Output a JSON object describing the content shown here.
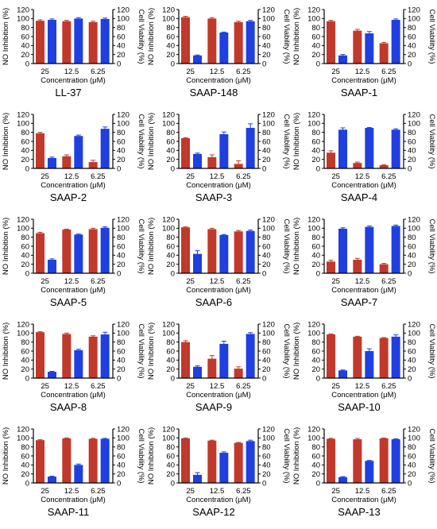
{
  "chart_data": [
    {
      "type": "bar",
      "title": "LL-37",
      "categories": [
        "25",
        "12.5",
        "6.25"
      ],
      "xlabel": "Concentration (μM)",
      "ylabel": "NO Inhibition (%)",
      "y2label": "Cell Viability (%)",
      "ylim": [
        0,
        120
      ],
      "y2lim": [
        0,
        120
      ],
      "yticks": [
        "0",
        "20",
        "40",
        "60",
        "80",
        "100",
        "120"
      ],
      "series": [
        {
          "axis": "left",
          "color": "#c0392b",
          "values": [
            95,
            94,
            92
          ],
          "errors": [
            2,
            2,
            2
          ]
        },
        {
          "axis": "right",
          "color": "#1f3fe0",
          "values": [
            97,
            100,
            99
          ],
          "errors": [
            2,
            2,
            2
          ]
        }
      ]
    },
    {
      "type": "bar",
      "title": "SAAP-148",
      "categories": [
        "25",
        "12.5",
        "6.25"
      ],
      "xlabel": "Concentration (μM)",
      "ylabel": "NO Inhibition (%)",
      "y2label": "Cell Viability (%)",
      "ylim": [
        0,
        120
      ],
      "y2lim": [
        0,
        120
      ],
      "yticks": [
        "0",
        "20",
        "40",
        "60",
        "80",
        "100",
        "120"
      ],
      "series": [
        {
          "axis": "left",
          "color": "#c0392b",
          "values": [
            103,
            100,
            92
          ],
          "errors": [
            2,
            2,
            2
          ]
        },
        {
          "axis": "right",
          "color": "#1f3fe0",
          "values": [
            18,
            69,
            94
          ],
          "errors": [
            1,
            1,
            2
          ]
        }
      ]
    },
    {
      "type": "bar",
      "title": "SAAP-1",
      "categories": [
        "25",
        "12.5",
        "6.25"
      ],
      "xlabel": "Concentration (μM)",
      "ylabel": "NO Inhibition (%)",
      "y2label": "Cell Viability (%)",
      "ylim": [
        0,
        120
      ],
      "y2lim": [
        0,
        120
      ],
      "yticks": [
        "0",
        "20",
        "40",
        "60",
        "80",
        "100",
        "120"
      ],
      "series": [
        {
          "axis": "left",
          "color": "#c0392b",
          "values": [
            94,
            73,
            45
          ],
          "errors": [
            2,
            3,
            2
          ]
        },
        {
          "axis": "right",
          "color": "#1f3fe0",
          "values": [
            18,
            67,
            97
          ],
          "errors": [
            2,
            4,
            2
          ]
        }
      ]
    },
    {
      "type": "bar",
      "title": "SAAP-2",
      "categories": [
        "25",
        "12.5",
        "6.25"
      ],
      "xlabel": "Concentration (μM)",
      "ylabel": "NO Inhibition (%)",
      "y2label": "Cell Viability (%)",
      "ylim": [
        0,
        120
      ],
      "y2lim": [
        0,
        120
      ],
      "yticks": [
        "0",
        "20",
        "40",
        "60",
        "80",
        "100",
        "120"
      ],
      "series": [
        {
          "axis": "left",
          "color": "#c0392b",
          "values": [
            78,
            27,
            14
          ],
          "errors": [
            2,
            3,
            4
          ]
        },
        {
          "axis": "right",
          "color": "#1f3fe0",
          "values": [
            23,
            72,
            88
          ],
          "errors": [
            2,
            2,
            4
          ]
        }
      ]
    },
    {
      "type": "bar",
      "title": "SAAP-3",
      "categories": [
        "25",
        "12.5",
        "6.25"
      ],
      "xlabel": "Concentration (μM)",
      "ylabel": "NO Inhibition (%)",
      "y2label": "Cell Viability (%)",
      "ylim": [
        0,
        120
      ],
      "y2lim": [
        0,
        120
      ],
      "yticks": [
        "0",
        "20",
        "40",
        "60",
        "80",
        "100",
        "120"
      ],
      "series": [
        {
          "axis": "left",
          "color": "#c0392b",
          "values": [
            67,
            25,
            10
          ],
          "errors": [
            1,
            5,
            7
          ]
        },
        {
          "axis": "right",
          "color": "#1f3fe0",
          "values": [
            32,
            76,
            90
          ],
          "errors": [
            2,
            5,
            9
          ]
        }
      ]
    },
    {
      "type": "bar",
      "title": "SAAP-4",
      "categories": [
        "25",
        "12.5",
        "6.25"
      ],
      "xlabel": "Concentration (μM)",
      "ylabel": "NO Inhibition (%)",
      "y2label": "Cell Viability (%)",
      "ylim": [
        0,
        120
      ],
      "y2lim": [
        0,
        120
      ],
      "yticks": [
        "0",
        "20",
        "40",
        "60",
        "80",
        "100",
        "120"
      ],
      "series": [
        {
          "axis": "left",
          "color": "#c0392b",
          "values": [
            35,
            12,
            7
          ],
          "errors": [
            4,
            2,
            1
          ]
        },
        {
          "axis": "right",
          "color": "#1f3fe0",
          "values": [
            86,
            90,
            86
          ],
          "errors": [
            4,
            1,
            2
          ]
        }
      ]
    },
    {
      "type": "bar",
      "title": "SAAP-5",
      "categories": [
        "25",
        "12.5",
        "6.25"
      ],
      "xlabel": "Concentration (μM)",
      "ylabel": "NO Inhibition (%)",
      "y2label": "Cell Viability (%)",
      "ylim": [
        0,
        120
      ],
      "y2lim": [
        0,
        120
      ],
      "yticks": [
        "0",
        "20",
        "40",
        "60",
        "80",
        "100",
        "120"
      ],
      "series": [
        {
          "axis": "left",
          "color": "#c0392b",
          "values": [
            89,
            97,
            98
          ],
          "errors": [
            2,
            1,
            2
          ]
        },
        {
          "axis": "right",
          "color": "#1f3fe0",
          "values": [
            30,
            86,
            101
          ],
          "errors": [
            2,
            1,
            2
          ]
        }
      ]
    },
    {
      "type": "bar",
      "title": "SAAP-6",
      "categories": [
        "25",
        "12.5",
        "6.25"
      ],
      "xlabel": "Concentration (μM)",
      "ylabel": "NO Inhibition (%)",
      "y2label": "Cell Viability (%)",
      "ylim": [
        0,
        120
      ],
      "y2lim": [
        0,
        120
      ],
      "yticks": [
        "0",
        "20",
        "40",
        "60",
        "80",
        "100",
        "120"
      ],
      "series": [
        {
          "axis": "left",
          "color": "#c0392b",
          "values": [
            102,
            98,
            93
          ],
          "errors": [
            1,
            2,
            2
          ]
        },
        {
          "axis": "right",
          "color": "#1f3fe0",
          "values": [
            43,
            85,
            94
          ],
          "errors": [
            7,
            1,
            2
          ]
        }
      ]
    },
    {
      "type": "bar",
      "title": "SAAP-7",
      "categories": [
        "25",
        "12.5",
        "6.25"
      ],
      "xlabel": "Concentration (μM)",
      "ylabel": "NO Inhibition (%)",
      "y2label": "Cell Viability (%)",
      "ylim": [
        0,
        120
      ],
      "y2lim": [
        0,
        120
      ],
      "yticks": [
        "0",
        "20",
        "40",
        "60",
        "80",
        "100",
        "120"
      ],
      "series": [
        {
          "axis": "left",
          "color": "#c0392b",
          "values": [
            26,
            30,
            20
          ],
          "errors": [
            3,
            3,
            2
          ]
        },
        {
          "axis": "right",
          "color": "#1f3fe0",
          "values": [
            99,
            103,
            105
          ],
          "errors": [
            2,
            2,
            2
          ]
        }
      ]
    },
    {
      "type": "bar",
      "title": "SAAP-8",
      "categories": [
        "25",
        "12.5",
        "6.25"
      ],
      "xlabel": "Concentration (μM)",
      "ylabel": "NO Inhibition (%)",
      "y2label": "Cell Viability (%)",
      "ylim": [
        0,
        120
      ],
      "y2lim": [
        0,
        120
      ],
      "yticks": [
        "0",
        "20",
        "40",
        "60",
        "80",
        "100",
        "120"
      ],
      "series": [
        {
          "axis": "left",
          "color": "#c0392b",
          "values": [
            102,
            98,
            92
          ],
          "errors": [
            1,
            2,
            2
          ]
        },
        {
          "axis": "right",
          "color": "#1f3fe0",
          "values": [
            14,
            62,
            97
          ],
          "errors": [
            1,
            2,
            5
          ]
        }
      ]
    },
    {
      "type": "bar",
      "title": "SAAP-9",
      "categories": [
        "25",
        "12.5",
        "6.25"
      ],
      "xlabel": "Concentration (μM)",
      "ylabel": "NO Inhibition (%)",
      "y2label": "Cell Viability (%)",
      "ylim": [
        0,
        120
      ],
      "y2lim": [
        0,
        120
      ],
      "yticks": [
        "0",
        "20",
        "40",
        "60",
        "80",
        "100",
        "120"
      ],
      "series": [
        {
          "axis": "left",
          "color": "#c0392b",
          "values": [
            80,
            43,
            21
          ],
          "errors": [
            3,
            7,
            4
          ]
        },
        {
          "axis": "right",
          "color": "#1f3fe0",
          "values": [
            25,
            76,
            98
          ],
          "errors": [
            2,
            6,
            3
          ]
        }
      ]
    },
    {
      "type": "bar",
      "title": "SAAP-10",
      "categories": [
        "25",
        "12.5",
        "6.25"
      ],
      "xlabel": "Concentration (μM)",
      "ylabel": "NO Inhibition (%)",
      "y2label": "Cell Viability (%)",
      "ylim": [
        0,
        120
      ],
      "y2lim": [
        0,
        120
      ],
      "yticks": [
        "0",
        "20",
        "40",
        "60",
        "80",
        "100",
        "120"
      ],
      "series": [
        {
          "axis": "left",
          "color": "#c0392b",
          "values": [
            97,
            92,
            89
          ],
          "errors": [
            1,
            1,
            1
          ]
        },
        {
          "axis": "right",
          "color": "#1f3fe0",
          "values": [
            17,
            60,
            92
          ],
          "errors": [
            1,
            5,
            4
          ]
        }
      ]
    },
    {
      "type": "bar",
      "title": "SAAP-11",
      "categories": [
        "25",
        "12.5",
        "6.25"
      ],
      "xlabel": "Concentration (μM)",
      "ylabel": "NO Inhibition (%)",
      "y2label": "Cell Viability (%)",
      "ylim": [
        0,
        120
      ],
      "y2lim": [
        0,
        120
      ],
      "yticks": [
        "0",
        "20",
        "40",
        "60",
        "80",
        "100",
        "120"
      ],
      "series": [
        {
          "axis": "left",
          "color": "#c0392b",
          "values": [
            95,
            99,
            98
          ],
          "errors": [
            1,
            1,
            1
          ]
        },
        {
          "axis": "right",
          "color": "#1f3fe0",
          "values": [
            14,
            40,
            98
          ],
          "errors": [
            1,
            2,
            1
          ]
        }
      ]
    },
    {
      "type": "bar",
      "title": "SAAP-12",
      "categories": [
        "25",
        "12.5",
        "6.25"
      ],
      "xlabel": "Concentration (μM)",
      "ylabel": "NO Inhibition (%)",
      "y2label": "Cell Viability (%)",
      "ylim": [
        0,
        120
      ],
      "y2lim": [
        0,
        120
      ],
      "yticks": [
        "0",
        "20",
        "40",
        "60",
        "80",
        "100",
        "120"
      ],
      "series": [
        {
          "axis": "left",
          "color": "#c0392b",
          "values": [
            99,
            94,
            89
          ],
          "errors": [
            1,
            1,
            1
          ]
        },
        {
          "axis": "right",
          "color": "#1f3fe0",
          "values": [
            18,
            67,
            93
          ],
          "errors": [
            5,
            2,
            2
          ]
        }
      ]
    },
    {
      "type": "bar",
      "title": "SAAP-13",
      "categories": [
        "25",
        "12.5",
        "6.25"
      ],
      "xlabel": "Concentration (μM)",
      "ylabel": "NO Inhibition (%)",
      "y2label": "Cell Viability (%)",
      "ylim": [
        0,
        120
      ],
      "y2lim": [
        0,
        120
      ],
      "yticks": [
        "0",
        "20",
        "40",
        "60",
        "80",
        "100",
        "120"
      ],
      "series": [
        {
          "axis": "left",
          "color": "#c0392b",
          "values": [
            98,
            97,
            99
          ],
          "errors": [
            1,
            2,
            1
          ]
        },
        {
          "axis": "right",
          "color": "#1f3fe0",
          "values": [
            13,
            49,
            97
          ],
          "errors": [
            1,
            1,
            1
          ]
        }
      ]
    }
  ]
}
